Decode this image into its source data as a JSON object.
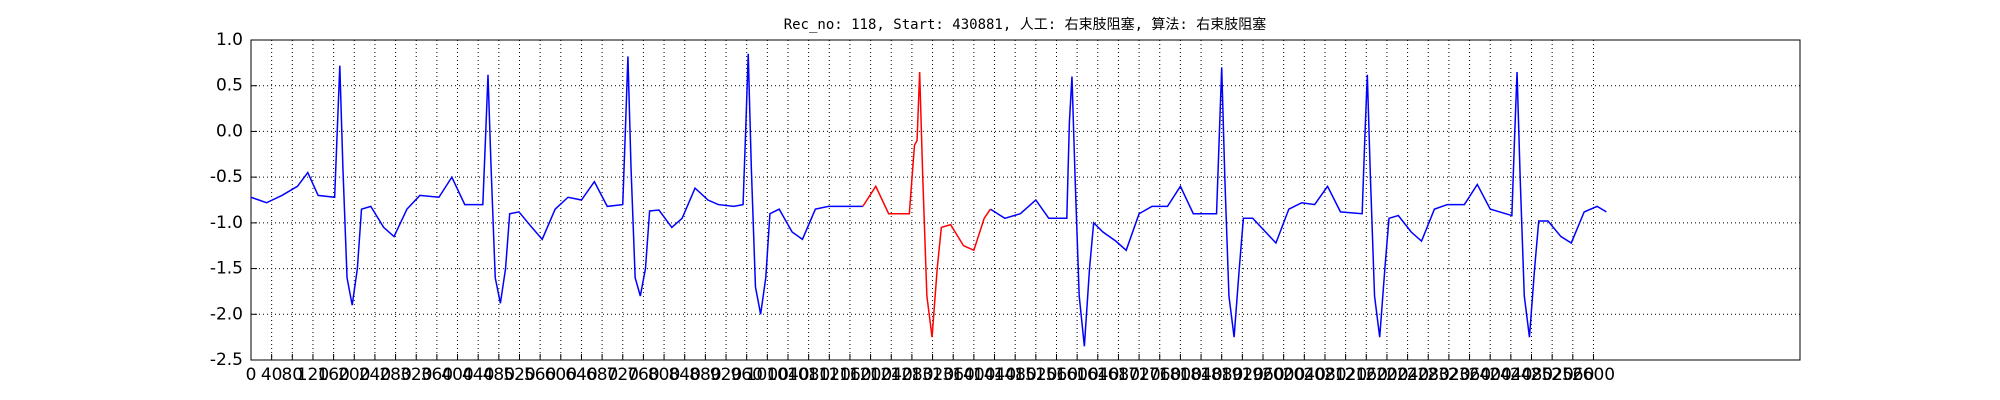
{
  "chart_data": {
    "type": "line",
    "title": "Rec_no: 118, Start: 430881, 人工: 右束肢阻塞, 算法: 右束肢阻塞",
    "xlim": [
      0,
      3000
    ],
    "xticks": [
      0,
      40,
      80,
      120,
      160,
      200,
      240,
      280,
      320,
      360,
      400,
      440,
      480,
      520,
      560,
      600,
      640,
      680,
      720,
      760,
      800,
      840,
      880,
      920,
      960,
      1000,
      1040,
      1080,
      1120,
      1160,
      1200,
      1240,
      1280,
      1320,
      1360,
      1400,
      1440,
      1480,
      1520,
      1560,
      1600,
      1640,
      1680,
      1720,
      1760,
      1800,
      1840,
      1880,
      1920,
      1960,
      2000,
      2040,
      2080,
      2120,
      2160,
      2200,
      2240,
      2280,
      2320,
      2360,
      2400,
      2440,
      2480,
      2520,
      2560,
      2600
    ],
    "ylim": [
      -2.5,
      1.0
    ],
    "yticks": [
      {
        "value": -2.5,
        "label": "-2.5"
      },
      {
        "value": -2.0,
        "label": "-2.0"
      },
      {
        "value": -1.5,
        "label": "-1.5"
      },
      {
        "value": -1.0,
        "label": "-1.0"
      },
      {
        "value": -0.5,
        "label": "-0.5"
      },
      {
        "value": 0.0,
        "label": "0.0"
      },
      {
        "value": 0.5,
        "label": "0.5"
      },
      {
        "value": 1.0,
        "label": "1.0"
      }
    ],
    "grid": true,
    "series": [
      {
        "color": "#0000ff",
        "x": [
          0,
          30,
          60,
          90,
          110,
          130,
          162,
          167,
          172,
          178,
          186,
          196,
          206,
          214,
          232,
          257,
          277,
          302,
          327,
          364,
          389,
          414,
          449,
          454,
          459,
          465,
          473,
          483,
          493,
          501,
          519,
          544,
          564,
          589,
          614,
          640,
          665,
          690,
          720,
          725,
          730,
          736,
          744,
          754,
          764,
          772,
          790,
          815,
          835,
          860,
          885,
          905,
          935,
          953,
          958,
          963,
          969,
          977,
          987,
          997,
          1005,
          1023,
          1048,
          1068,
          1093,
          1118,
          1150,
          1185,
          1300,
          1432,
          1460,
          1490,
          1520,
          1545,
          1580,
          1585,
          1590,
          1596,
          1604,
          1614,
          1624,
          1632,
          1650,
          1675,
          1695,
          1720,
          1745,
          1775,
          1800,
          1825,
          1870,
          1875,
          1880,
          1886,
          1894,
          1904,
          1914,
          1922,
          1940,
          1965,
          1985,
          2010,
          2035,
          2060,
          2085,
          2110,
          2152,
          2157,
          2162,
          2168,
          2176,
          2186,
          2196,
          2204,
          2222,
          2247,
          2267,
          2292,
          2317,
          2350,
          2375,
          2400,
          2442,
          2447,
          2452,
          2458,
          2466,
          2476,
          2486,
          2494,
          2512,
          2537,
          2557,
          2582,
          2607,
          2625
        ],
        "values": [
          -0.72,
          -0.78,
          -0.7,
          -0.6,
          -0.45,
          -0.7,
          -0.72,
          0.0,
          0.72,
          -0.4,
          -1.6,
          -1.9,
          -1.5,
          -0.85,
          -0.82,
          -1.05,
          -1.15,
          -0.85,
          -0.7,
          -0.72,
          -0.5,
          -0.8,
          -0.8,
          -0.1,
          0.62,
          -0.4,
          -1.6,
          -1.88,
          -1.5,
          -0.9,
          -0.88,
          -1.05,
          -1.18,
          -0.85,
          -0.72,
          -0.75,
          -0.55,
          -0.82,
          -0.8,
          0.0,
          0.82,
          -0.4,
          -1.6,
          -1.8,
          -1.5,
          -0.87,
          -0.86,
          -1.05,
          -0.95,
          -0.62,
          -0.75,
          -0.8,
          -0.82,
          -0.8,
          0.0,
          0.85,
          -0.4,
          -1.7,
          -2.0,
          -1.6,
          -0.9,
          -0.85,
          -1.1,
          -1.18,
          -0.85,
          -0.82,
          -0.82,
          -0.82,
          null,
          -0.85,
          -0.95,
          -0.9,
          -0.75,
          -0.95,
          -0.95,
          0.1,
          0.6,
          -0.5,
          -1.8,
          -2.35,
          -1.5,
          -1.0,
          -1.1,
          -1.2,
          -1.3,
          -0.9,
          -0.82,
          -0.82,
          -0.6,
          -0.9,
          -0.9,
          -0.1,
          0.7,
          -0.5,
          -1.8,
          -2.25,
          -1.5,
          -0.95,
          -0.95,
          -1.1,
          -1.22,
          -0.85,
          -0.78,
          -0.8,
          -0.6,
          -0.88,
          -0.9,
          -0.1,
          0.62,
          -0.5,
          -1.8,
          -2.25,
          -1.5,
          -0.95,
          -0.92,
          -1.1,
          -1.2,
          -0.85,
          -0.8,
          -0.8,
          -0.58,
          -0.85,
          -0.92,
          -0.1,
          0.65,
          -0.5,
          -1.8,
          -2.25,
          -1.5,
          -0.98,
          -0.98,
          -1.15,
          -1.22,
          -0.88,
          -0.82,
          -0.88
        ]
      },
      {
        "color": "#ff0000",
        "x": [
          1185,
          1210,
          1235,
          1275,
          1285,
          1290,
          1295,
          1301,
          1309,
          1319,
          1329,
          1337,
          1355,
          1380,
          1400,
          1420,
          1432
        ],
        "values": [
          -0.82,
          -0.6,
          -0.9,
          -0.9,
          -0.15,
          -0.1,
          0.65,
          -0.5,
          -1.8,
          -2.25,
          -1.5,
          -1.05,
          -1.02,
          -1.25,
          -1.3,
          -0.95,
          -0.85
        ]
      }
    ]
  }
}
